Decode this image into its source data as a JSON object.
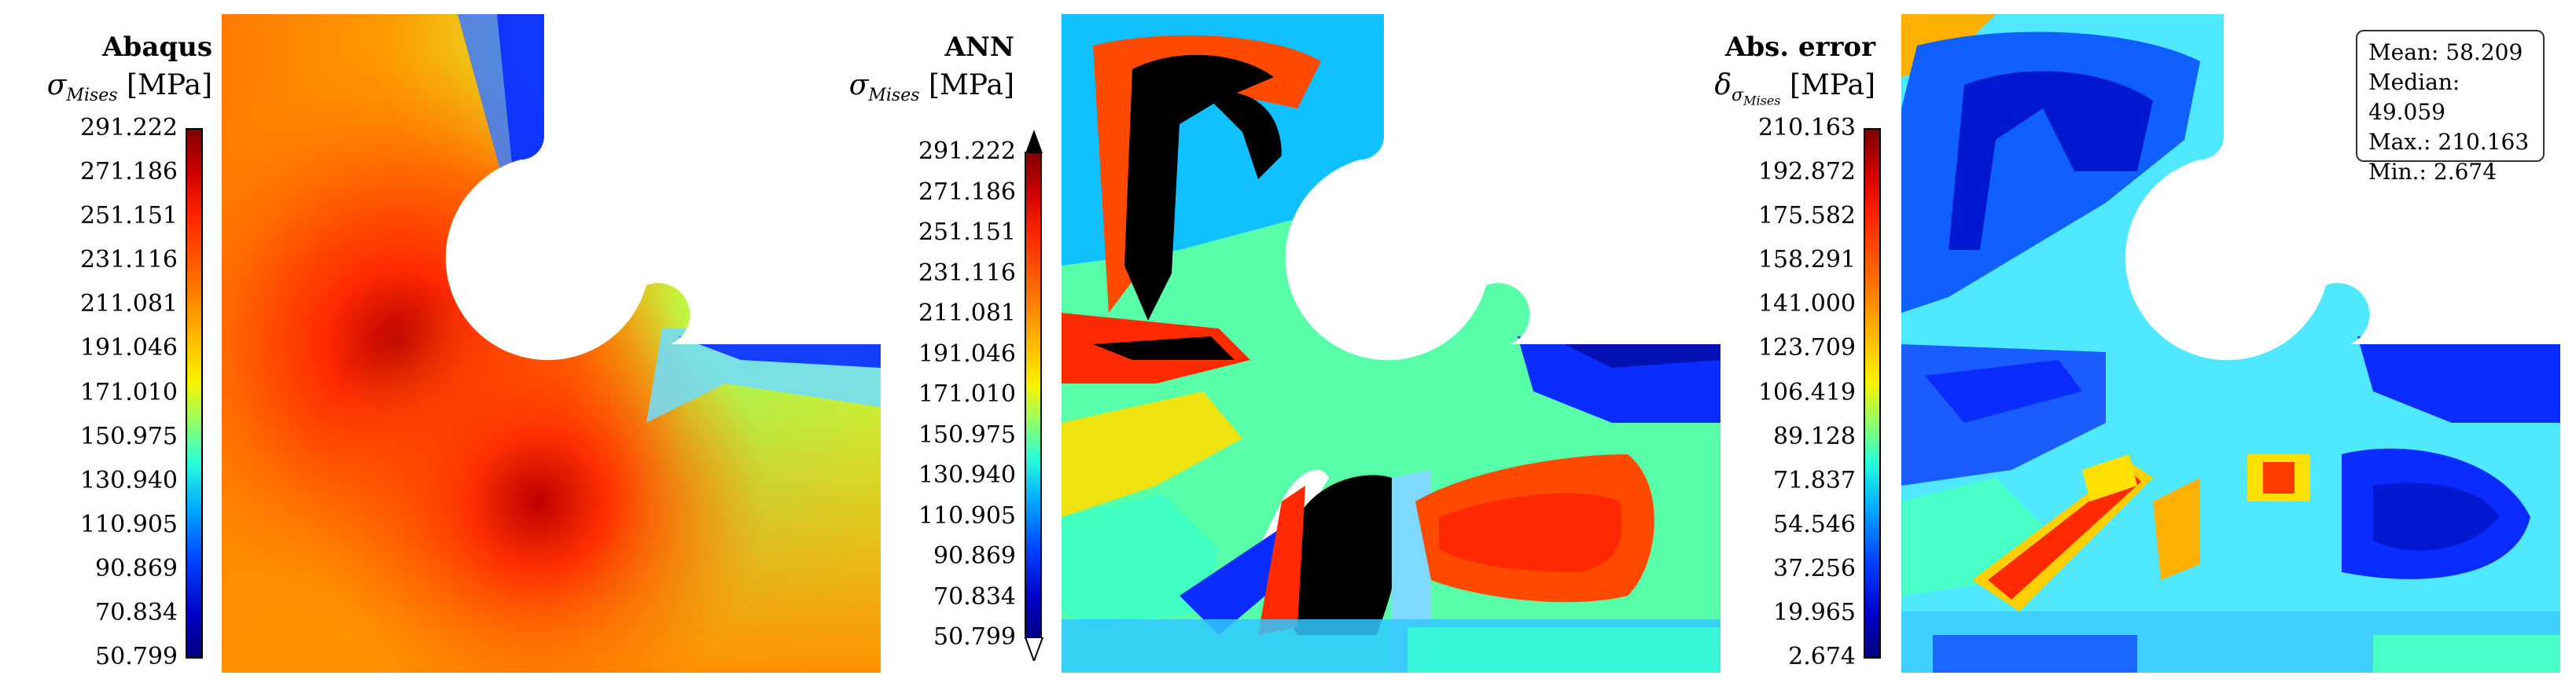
{
  "panels": [
    {
      "title": "Abaqus",
      "quantity_symbol": "σ",
      "quantity_subscript": "Mises",
      "unit": "[MPa]",
      "colorbar_ticks": [
        "291.222",
        "271.186",
        "251.151",
        "231.116",
        "211.081",
        "191.046",
        "171.010",
        "150.975",
        "130.940",
        "110.905",
        "90.869",
        "70.834",
        "50.799"
      ],
      "colorbar_extend_arrows": false
    },
    {
      "title": "ANN",
      "quantity_symbol": "σ",
      "quantity_subscript": "Mises",
      "unit": "[MPa]",
      "colorbar_ticks": [
        "291.222",
        "271.186",
        "251.151",
        "231.116",
        "211.081",
        "191.046",
        "171.010",
        "150.975",
        "130.940",
        "110.905",
        "90.869",
        "70.834",
        "50.799"
      ],
      "colorbar_extend_arrows": true
    },
    {
      "title": "Abs. error",
      "quantity_symbol": "δ",
      "quantity_subscript": "σ",
      "quantity_subsubscript": "Mises",
      "unit": "[MPa]",
      "colorbar_ticks": [
        "210.163",
        "192.872",
        "175.582",
        "158.291",
        "141.000",
        "123.709",
        "106.419",
        "89.128",
        "71.837",
        "54.546",
        "37.256",
        "19.965",
        "2.674"
      ],
      "colorbar_extend_arrows": false
    }
  ],
  "stats": {
    "mean": "Mean: 58.209",
    "median": "Median: 49.059",
    "max": "Max.: 210.163",
    "min": "Min.: 2.674"
  },
  "colormap": "jet"
}
